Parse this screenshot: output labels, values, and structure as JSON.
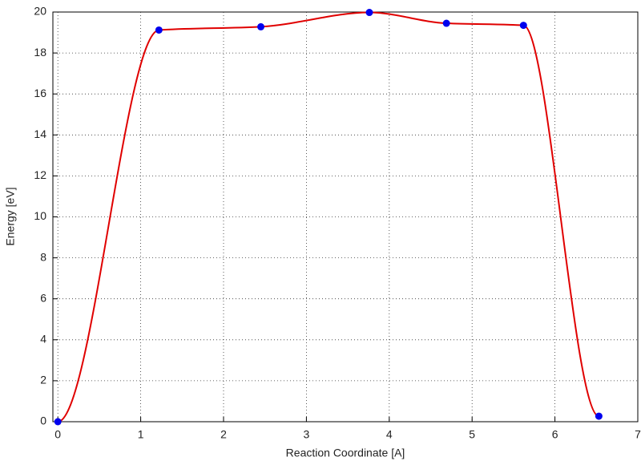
{
  "chart_data": {
    "type": "line",
    "x_label": "Reaction Coordinate [A]",
    "y_label": "Energy [eV]",
    "x": [
      0,
      1.22,
      2.45,
      3.76,
      4.69,
      5.62,
      6.53
    ],
    "values": [
      0,
      19.12,
      19.28,
      19.98,
      19.45,
      19.35,
      0.27
    ],
    "line_color": "#e00000",
    "marker_color": "#0000ee",
    "xlim": [
      -0.06,
      7
    ],
    "xticks": [
      0,
      1,
      2,
      3,
      4,
      5,
      6,
      7
    ],
    "ylim": [
      0,
      20
    ],
    "yticks": [
      0,
      2,
      4,
      6,
      8,
      10,
      12,
      14,
      16,
      18,
      20
    ],
    "grid": true
  }
}
